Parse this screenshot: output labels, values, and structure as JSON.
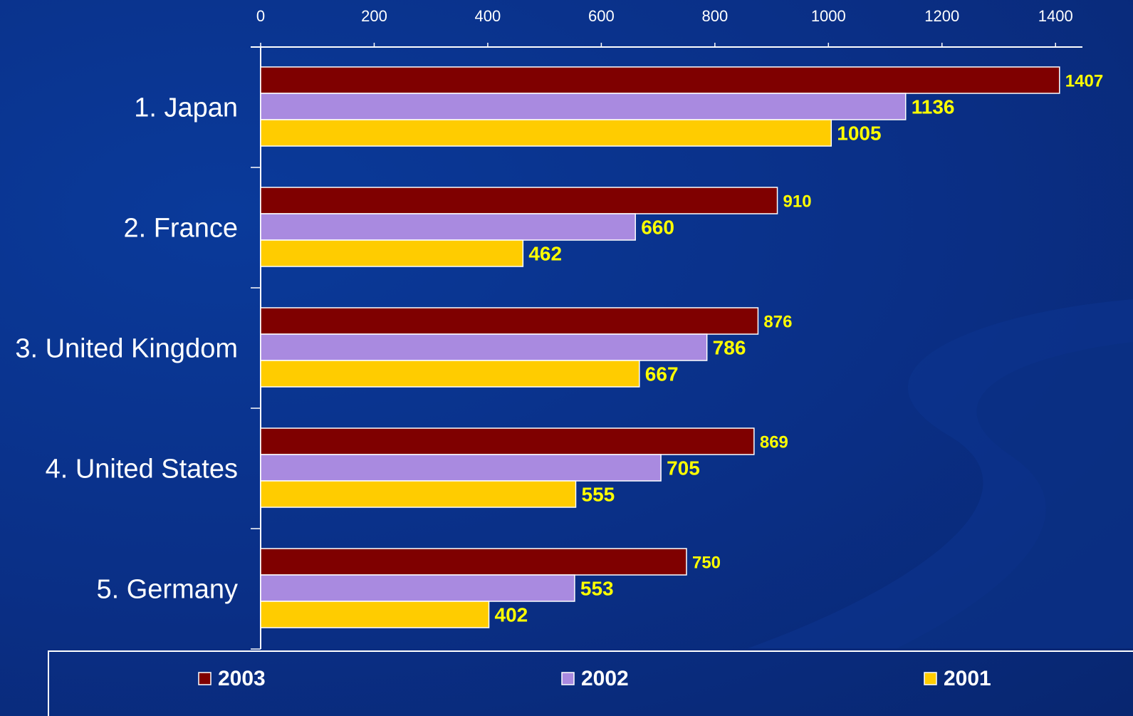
{
  "chart_data": {
    "type": "bar",
    "orientation": "horizontal",
    "categories": [
      "1. Japan",
      "2. France",
      "3. United Kingdom",
      "4. United States",
      "5. Germany"
    ],
    "series": [
      {
        "name": "2003",
        "values": [
          1407,
          910,
          876,
          869,
          750
        ],
        "color": "#7f0000"
      },
      {
        "name": "2002",
        "values": [
          1136,
          660,
          786,
          705,
          553
        ],
        "color": "#a98ae0"
      },
      {
        "name": "2001",
        "values": [
          1005,
          462,
          667,
          555,
          402
        ],
        "color": "#ffcc00"
      }
    ],
    "xaxis": {
      "position": "top",
      "ticks": [
        0,
        200,
        400,
        600,
        800,
        1000,
        1200,
        1400
      ],
      "xlim": [
        0,
        1450
      ]
    },
    "title": "",
    "xlabel": "",
    "ylabel": "",
    "grid": false,
    "legend": {
      "placement": "bottom",
      "entries": [
        "2003",
        "2002",
        "2001"
      ]
    },
    "colors": {
      "background": "#0a2f86",
      "axis": "#ffffff",
      "bar_outline": "#ffffff",
      "value_label": "#ffff00"
    }
  }
}
